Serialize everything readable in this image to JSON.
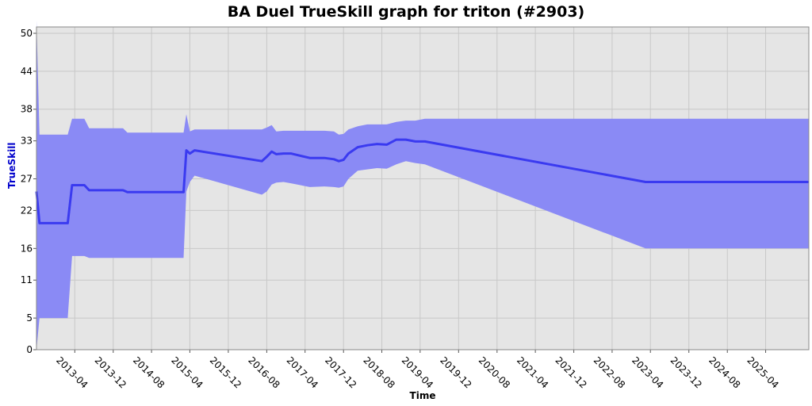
{
  "chart_data": {
    "type": "area",
    "title": "BA Duel TrueSkill graph for triton (#2903)",
    "xlabel": "Time",
    "ylabel": "TrueSkill",
    "ylim": [
      0,
      51
    ],
    "yticks": [
      0,
      5,
      11,
      16,
      22,
      27,
      33,
      38,
      44,
      50
    ],
    "xticks": [
      "2013-04",
      "2013-12",
      "2014-08",
      "2015-04",
      "2015-12",
      "2016-08",
      "2017-04",
      "2017-12",
      "2018-08",
      "2019-04",
      "2019-12",
      "2020-08",
      "2021-04",
      "2021-12",
      "2022-08",
      "2023-04",
      "2023-12",
      "2024-08",
      "2025-04"
    ],
    "grid": true,
    "colors": {
      "band": "#8a8af5",
      "line": "#3a3af0",
      "plot_bg": "#e5e5e5"
    },
    "series": [
      {
        "kind": "mean",
        "points": [
          [
            "2012-08-01",
            25.0
          ],
          [
            "2012-08-20",
            20.0
          ],
          [
            "2013-02-15",
            20.0
          ],
          [
            "2013-03-15",
            26.0
          ],
          [
            "2013-06-01",
            26.0
          ],
          [
            "2013-07-01",
            25.2
          ],
          [
            "2014-02-01",
            25.2
          ],
          [
            "2014-03-01",
            24.9
          ],
          [
            "2015-02-20",
            24.9
          ],
          [
            "2015-03-10",
            31.5
          ],
          [
            "2015-04-01",
            31.0
          ],
          [
            "2015-05-01",
            31.5
          ],
          [
            "2016-07-01",
            29.8
          ],
          [
            "2016-08-01",
            30.5
          ],
          [
            "2016-09-01",
            31.3
          ],
          [
            "2016-10-01",
            30.9
          ],
          [
            "2016-11-15",
            31.0
          ],
          [
            "2017-01-01",
            31.0
          ],
          [
            "2017-05-01",
            30.3
          ],
          [
            "2017-08-01",
            30.3
          ],
          [
            "2017-10-01",
            30.1
          ],
          [
            "2017-11-01",
            29.8
          ],
          [
            "2017-12-01",
            30.0
          ],
          [
            "2018-01-01",
            31.0
          ],
          [
            "2018-03-01",
            32.0
          ],
          [
            "2018-05-01",
            32.3
          ],
          [
            "2018-07-01",
            32.5
          ],
          [
            "2018-09-01",
            32.4
          ],
          [
            "2018-11-01",
            33.2
          ],
          [
            "2019-01-01",
            33.2
          ],
          [
            "2019-03-01",
            32.9
          ],
          [
            "2019-05-01",
            32.9
          ],
          [
            "2023-03-01",
            26.5
          ],
          [
            "2025-12-31",
            26.5
          ]
        ]
      },
      {
        "kind": "upper",
        "points": [
          [
            "2012-08-01",
            52.0
          ],
          [
            "2012-08-20",
            34.0
          ],
          [
            "2013-02-15",
            34.0
          ],
          [
            "2013-03-15",
            36.5
          ],
          [
            "2013-06-01",
            36.5
          ],
          [
            "2013-07-01",
            35.0
          ],
          [
            "2014-02-01",
            35.0
          ],
          [
            "2014-03-01",
            34.3
          ],
          [
            "2015-02-20",
            34.3
          ],
          [
            "2015-03-10",
            37.2
          ],
          [
            "2015-04-01",
            34.5
          ],
          [
            "2015-05-01",
            34.8
          ],
          [
            "2016-07-01",
            34.8
          ],
          [
            "2016-08-01",
            35.1
          ],
          [
            "2016-09-01",
            35.5
          ],
          [
            "2016-10-01",
            34.5
          ],
          [
            "2016-11-15",
            34.6
          ],
          [
            "2017-01-01",
            34.6
          ],
          [
            "2017-05-01",
            34.6
          ],
          [
            "2017-08-01",
            34.6
          ],
          [
            "2017-10-01",
            34.5
          ],
          [
            "2017-11-01",
            34.0
          ],
          [
            "2017-12-01",
            34.1
          ],
          [
            "2018-01-01",
            34.8
          ],
          [
            "2018-03-01",
            35.3
          ],
          [
            "2018-05-01",
            35.6
          ],
          [
            "2018-07-01",
            35.6
          ],
          [
            "2018-09-01",
            35.6
          ],
          [
            "2018-11-01",
            36.0
          ],
          [
            "2019-01-01",
            36.2
          ],
          [
            "2019-03-01",
            36.2
          ],
          [
            "2019-05-01",
            36.5
          ],
          [
            "2023-03-01",
            36.5
          ],
          [
            "2025-12-31",
            36.5
          ]
        ]
      },
      {
        "kind": "lower",
        "points": [
          [
            "2012-08-01",
            0.0
          ],
          [
            "2012-08-20",
            5.0
          ],
          [
            "2013-02-15",
            5.0
          ],
          [
            "2013-03-15",
            14.8
          ],
          [
            "2013-06-01",
            14.8
          ],
          [
            "2013-07-01",
            14.5
          ],
          [
            "2014-02-01",
            14.5
          ],
          [
            "2014-03-01",
            14.5
          ],
          [
            "2015-02-20",
            14.5
          ],
          [
            "2015-03-10",
            25.0
          ],
          [
            "2015-04-01",
            26.5
          ],
          [
            "2015-05-01",
            27.5
          ],
          [
            "2016-07-01",
            24.5
          ],
          [
            "2016-08-01",
            25.0
          ],
          [
            "2016-09-01",
            26.1
          ],
          [
            "2016-10-01",
            26.4
          ],
          [
            "2016-11-15",
            26.5
          ],
          [
            "2017-01-01",
            26.3
          ],
          [
            "2017-05-01",
            25.7
          ],
          [
            "2017-08-01",
            25.8
          ],
          [
            "2017-10-01",
            25.7
          ],
          [
            "2017-11-01",
            25.6
          ],
          [
            "2017-12-01",
            25.8
          ],
          [
            "2018-01-01",
            27.0
          ],
          [
            "2018-03-01",
            28.3
          ],
          [
            "2018-05-01",
            28.5
          ],
          [
            "2018-07-01",
            28.7
          ],
          [
            "2018-09-01",
            28.6
          ],
          [
            "2018-11-01",
            29.3
          ],
          [
            "2019-01-01",
            29.8
          ],
          [
            "2019-03-01",
            29.5
          ],
          [
            "2019-05-01",
            29.3
          ],
          [
            "2023-03-01",
            16.0
          ],
          [
            "2025-12-31",
            16.0
          ]
        ]
      }
    ]
  }
}
